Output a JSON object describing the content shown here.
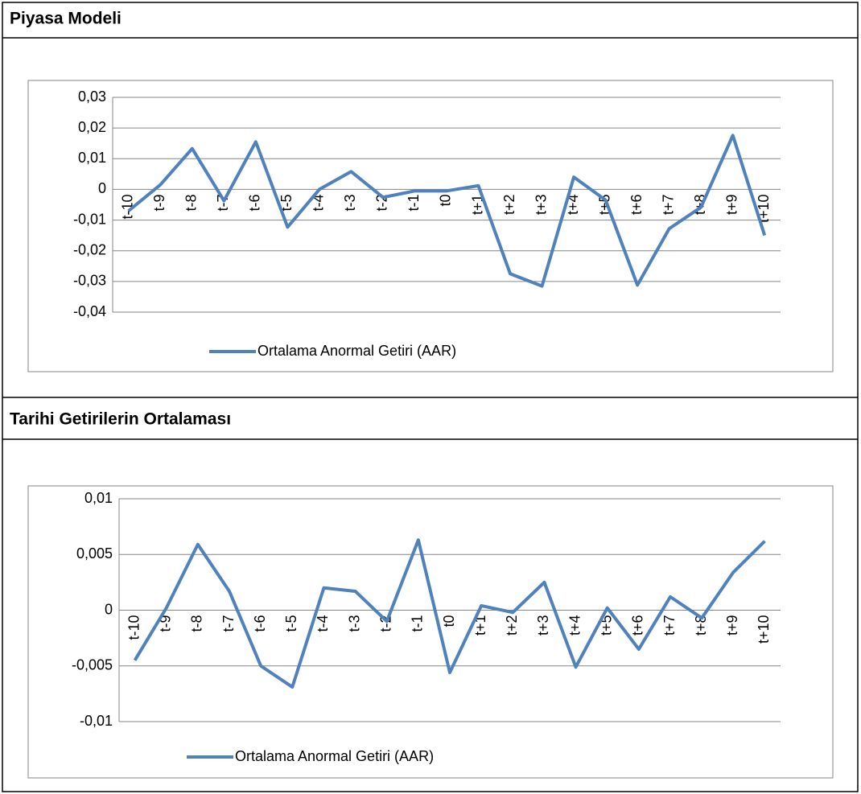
{
  "chart_data": [
    {
      "type": "line",
      "title": "Piyasa Modeli",
      "categories": [
        "t-10",
        "t-9",
        "t-8",
        "t-7",
        "t-6",
        "t-5",
        "t-4",
        "t-3",
        "t-2",
        "t-1",
        "t0",
        "t+1",
        "t+2",
        "t+3",
        "t+4",
        "t+5",
        "t+6",
        "t+7",
        "t+8",
        "t+9",
        "t+10"
      ],
      "series": [
        {
          "name": "Ortalama Anormal Getiri (AAR)",
          "color": "#4f81bd",
          "values": [
            -0.007,
            0.0015,
            0.0133,
            -0.0037,
            0.0155,
            -0.0123,
            0,
            0.0058,
            -0.0026,
            -0.0005,
            -0.0005,
            0.0012,
            -0.0275,
            -0.0315,
            0.004,
            -0.0035,
            -0.0312,
            -0.0128,
            -0.0058,
            0.0176,
            -0.015
          ]
        }
      ],
      "ylim": [
        -0.04,
        0.03
      ],
      "yticks": [
        {
          "value": -0.04,
          "label": "-0,04"
        },
        {
          "value": -0.03,
          "label": "-0,03"
        },
        {
          "value": -0.02,
          "label": "-0,02"
        },
        {
          "value": -0.01,
          "label": "-0,01"
        },
        0,
        {
          "value": 0.01,
          "label": "0,01"
        },
        {
          "value": 0.02,
          "label": "0,02"
        },
        {
          "value": 0.03,
          "label": "0,03"
        }
      ],
      "grid": true,
      "legend": "bottom"
    },
    {
      "type": "line",
      "title": "Tarihi Getirilerin Ortalaması",
      "categories": [
        "t-10",
        "t-9",
        "t-8",
        "t-7",
        "t-6",
        "t-5",
        "t-4",
        "t-3",
        "t-2",
        "t-1",
        "t0",
        "t+1",
        "t+2",
        "t+3",
        "t+4",
        "t+5",
        "t+6",
        "t+7",
        "t+8",
        "t+9",
        "t+10"
      ],
      "series": [
        {
          "name": "Ortalama Anormal Getiri (AAR)",
          "color": "#4f81bd",
          "values": [
            -0.0045,
            0.0002,
            0.0059,
            0.0017,
            -0.005,
            -0.0069,
            0.002,
            0.0017,
            -0.001,
            0.0063,
            -0.0056,
            0.0004,
            -0.0002,
            0.0025,
            -0.0051,
            0.0002,
            -0.0035,
            0.0012,
            -0.0007,
            0.0034,
            0.0062
          ]
        }
      ],
      "ylim": [
        -0.01,
        0.01
      ],
      "yticks": [
        {
          "value": -0.01,
          "label": "-0,01"
        },
        {
          "value": -0.005,
          "label": "-0,005"
        },
        0,
        {
          "value": 0.005,
          "label": "0,005"
        },
        {
          "value": 0.01,
          "label": "0,01"
        }
      ],
      "grid": true,
      "legend": "bottom"
    }
  ]
}
